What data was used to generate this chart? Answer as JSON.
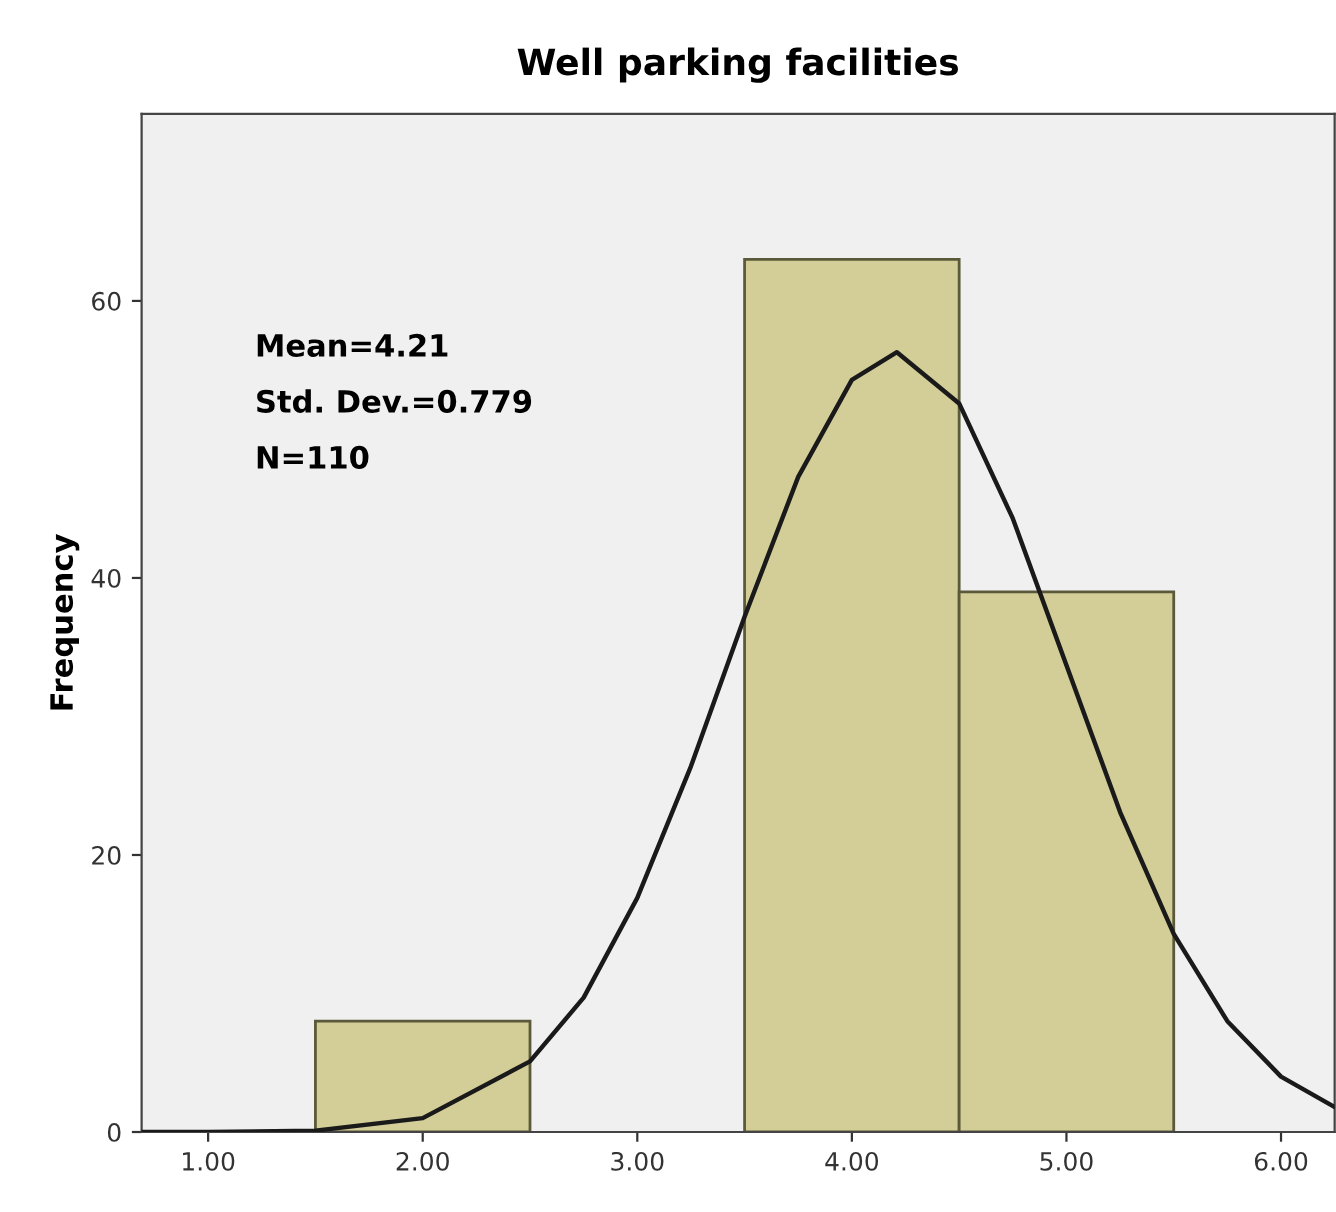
{
  "chart_data": {
    "type": "histogram",
    "title": "Well parking facilities",
    "ylabel": "Frequency",
    "bins": [
      1.5,
      2.5,
      3.5,
      4.5,
      5.5
    ],
    "values": [
      8,
      0,
      63,
      39
    ],
    "color": "#d3cd97",
    "series": [
      {
        "type": "line",
        "color": "#1a1a1a",
        "x": [
          0.69,
          1.0,
          1.5,
          2.0,
          2.5,
          2.75,
          3.0,
          3.25,
          3.5,
          3.75,
          4.0,
          4.21,
          4.5,
          4.75,
          5.0,
          5.25,
          5.5,
          5.75,
          6.0,
          6.25
        ],
        "values": [
          0.0,
          0.0,
          0.1,
          1.0,
          5.1,
          9.7,
          16.9,
          26.4,
          37.2,
          47.3,
          54.3,
          56.3,
          52.6,
          44.3,
          33.7,
          23.1,
          14.3,
          8.0,
          4.0,
          1.8
        ]
      }
    ],
    "annotations": [
      "Mean=4.21",
      "Std. Dev.=0.779",
      "N=110"
    ],
    "xlim": [
      0.69,
      6.25
    ],
    "ylim": [
      0,
      73.5
    ],
    "xticks": [
      {
        "value": 1,
        "label": "1.00"
      },
      {
        "value": 2,
        "label": "2.00"
      },
      {
        "value": 3,
        "label": "3.00"
      },
      {
        "value": 4,
        "label": "4.00"
      },
      {
        "value": 5,
        "label": "5.00"
      },
      {
        "value": 6,
        "label": "6.00"
      }
    ],
    "yticks": [
      0,
      20,
      40,
      60
    ],
    "grid": false,
    "legend": false
  }
}
